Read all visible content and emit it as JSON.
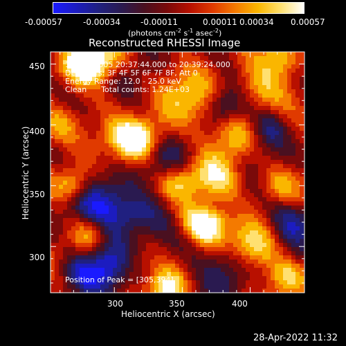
{
  "colorbar": {
    "colors": [
      "#1a1aff",
      "#1c1cc0",
      "#202080",
      "#2a1a50",
      "#4a1020",
      "#7a0a0a",
      "#b81000",
      "#e03a00",
      "#f47a00",
      "#fab600",
      "#ffe070",
      "#ffffff"
    ],
    "ticks": [
      "-0.00057",
      "-0.00034",
      "-0.00011",
      "0.00011",
      "0.00034",
      "0.00057"
    ],
    "unit_prefix": "(photons cm",
    "unit_exp1": "-2",
    "unit_mid1": " s",
    "unit_exp2": "-1",
    "unit_mid2": " asec",
    "unit_exp3": "-2",
    "unit_suffix": ")"
  },
  "title": "Reconstructed RHESSI Image",
  "annotation": {
    "line1": "13-Feb-2005 20:37:44.000 to 20:39:24.000",
    "line2": "Detectors: 3F 4F 5F 6F 7F 8F, Att 0",
    "line3": "Energy Range: 12.0 - 25.0 keV",
    "line4": "Clean      Total counts: 1.24E+03",
    "peak": "Position of Peak = [305,394]"
  },
  "axes": {
    "xlabel": "Heliocentric X (arcsec)",
    "ylabel": "Heliocentric Y (arcsec)",
    "xticks": [
      "300",
      "350",
      "400"
    ],
    "yticks": [
      "450",
      "400",
      "350",
      "300"
    ],
    "xlim": [
      253,
      440
    ],
    "ylim": [
      262,
      460
    ]
  },
  "timestamp": "28-Apr-2022 11:32"
}
